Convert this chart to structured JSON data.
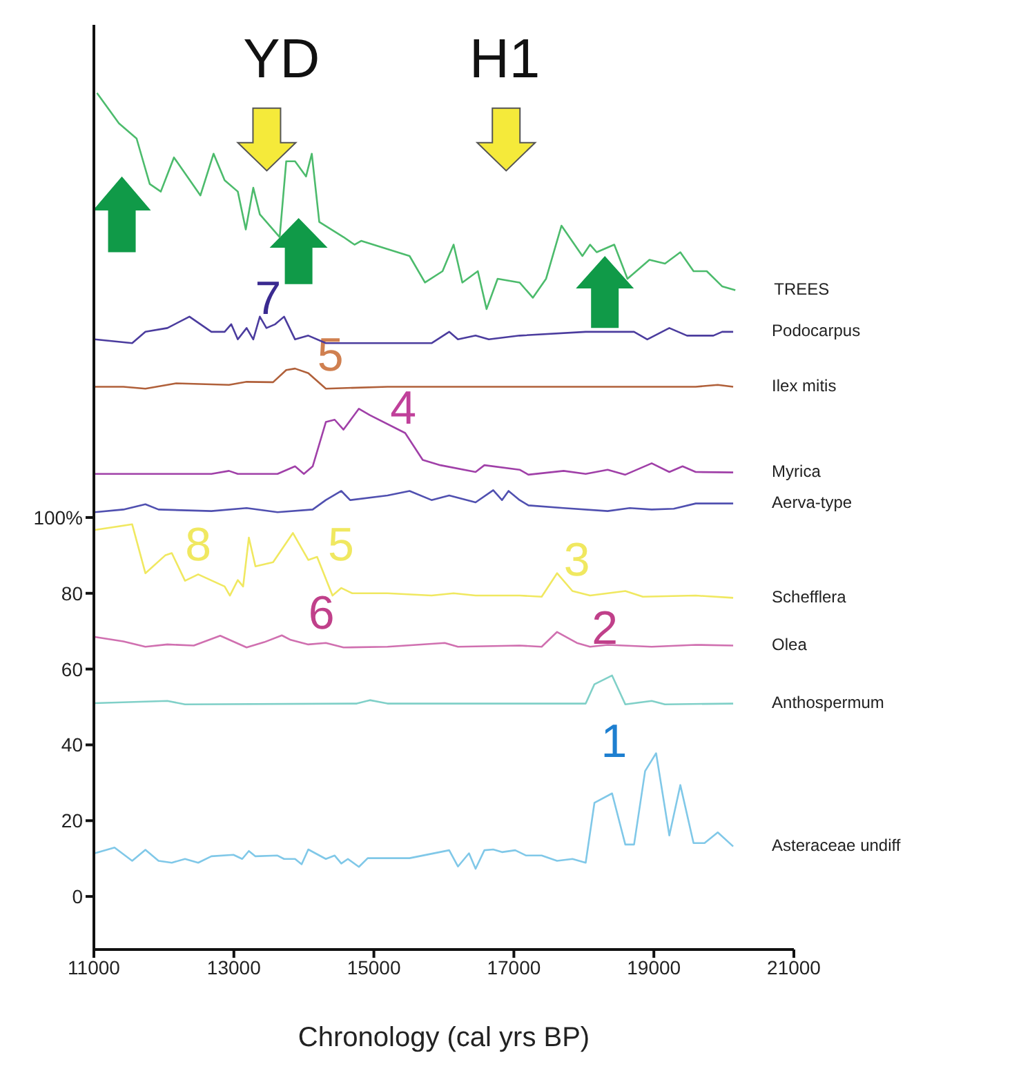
{
  "chart_data": {
    "type": "line",
    "xlabel": "Chronology (cal yrs BP)",
    "xlim": [
      11000,
      21000
    ],
    "xticks": [
      11000,
      13000,
      15000,
      17000,
      19000,
      21000
    ],
    "ylim": [
      -14,
      230
    ],
    "yticks": [
      0,
      20,
      40,
      60,
      {
        "value": 100,
        "label": "100%"
      },
      80
    ],
    "annotations": [
      "YD",
      "H1",
      "7",
      "5",
      "4",
      "8",
      "5",
      "3",
      "6",
      "2",
      "1"
    ],
    "series": [
      {
        "name": "TREES",
        "color": "#4cbb6c",
        "x": [
          11044,
          11358,
          11610,
          11798,
          11956,
          12144,
          12522,
          12710,
          12868,
          13056,
          13170,
          13277,
          13371,
          13654,
          13748,
          13874,
          14031,
          14113,
          14220,
          14566,
          14723,
          14818,
          15510,
          15730,
          15981,
          16139,
          16264,
          16485,
          16610,
          16768,
          17082,
          17271,
          17460,
          17680,
          17979,
          18089,
          18183,
          18434,
          18623,
          18937,
          19159,
          19378,
          19567,
          19756,
          19975,
          20164
        ],
        "values": [
          212,
          204,
          200,
          188,
          186,
          195,
          185,
          196,
          189,
          186,
          176,
          187,
          180,
          174,
          194,
          194,
          190,
          196,
          178,
          174,
          172,
          173,
          169,
          162,
          165,
          172,
          162,
          165,
          155,
          163,
          162,
          158,
          163,
          177,
          169,
          172,
          170,
          172,
          163,
          168,
          167,
          170,
          165,
          165,
          161,
          160
        ]
      },
      {
        "name": "Podocarpus",
        "color": "#4b3c9e",
        "x": [
          11012,
          11547,
          11736,
          12050,
          12365,
          12679,
          12868,
          12962,
          13056,
          13182,
          13277,
          13371,
          13465,
          13591,
          13717,
          13874,
          14063,
          14314,
          14880,
          15824,
          16076,
          16201,
          16453,
          16642,
          17082,
          18026,
          18340,
          18717,
          18906,
          19221,
          19473,
          19850,
          19975,
          20133
        ],
        "values": [
          147,
          146,
          149,
          150,
          153,
          149,
          149,
          151,
          147,
          150,
          147,
          153,
          150,
          151,
          153,
          147,
          148,
          146,
          146,
          146,
          149,
          147,
          148,
          147,
          148,
          149,
          149,
          149,
          147,
          150,
          148,
          148,
          149,
          149
        ]
      },
      {
        "name": "Ilex mitis",
        "color": "#b0603a",
        "x": [
          11012,
          11421,
          11736,
          12176,
          12930,
          13182,
          13560,
          13748,
          13874,
          14063,
          14314,
          15195,
          16453,
          19598,
          19913,
          20133
        ],
        "values": [
          134.5,
          134.5,
          134,
          135.4,
          135,
          135.8,
          135.7,
          138.9,
          139.3,
          138.1,
          134,
          134.5,
          134.5,
          134.5,
          135,
          134.5
        ]
      },
      {
        "name": "Myrica",
        "color": "#a040a8",
        "x": [
          11012,
          12679,
          12930,
          13056,
          13623,
          13874,
          14000,
          14126,
          14314,
          14440,
          14566,
          14786,
          14943,
          15447,
          15698,
          15950,
          16453,
          16579,
          17082,
          17208,
          17711,
          18026,
          18340,
          18592,
          18969,
          19221,
          19410,
          19598,
          20133
        ],
        "values": [
          111.5,
          111.5,
          112.3,
          111.5,
          111.5,
          113.5,
          111.5,
          113.5,
          125.2,
          125.8,
          123.2,
          128.7,
          127,
          122.3,
          115.2,
          113.8,
          112,
          113.8,
          112.6,
          111.3,
          112.3,
          111.5,
          112.6,
          111.3,
          114.3,
          112,
          113.5,
          112,
          111.9
        ]
      },
      {
        "name": "Aerva-type",
        "color": "#5050b0",
        "x": [
          11012,
          11421,
          11736,
          11924,
          12679,
          13182,
          13623,
          14126,
          14314,
          14535,
          14660,
          15195,
          15510,
          15824,
          16076,
          16453,
          16705,
          16830,
          16924,
          17082,
          17208,
          17711,
          18340,
          18655,
          18969,
          19284,
          19598,
          20133
        ],
        "values": [
          101.4,
          102.1,
          103.5,
          102.1,
          101.7,
          102.5,
          101.4,
          102.1,
          104.6,
          107,
          104.6,
          105.8,
          107,
          104.6,
          105.8,
          104,
          107.2,
          104.6,
          107,
          104.6,
          103.2,
          102.5,
          101.7,
          102.5,
          102.1,
          102.3,
          103.7,
          103.7
        ]
      },
      {
        "name": "Schefflera",
        "color": "#f0e860",
        "x": [
          11012,
          11547,
          11736,
          12019,
          12113,
          12302,
          12490,
          12868,
          12943,
          13056,
          13132,
          13214,
          13308,
          13560,
          13843,
          14063,
          14189,
          14409,
          14535,
          14692,
          15195,
          15824,
          16139,
          16453,
          17082,
          17397,
          17617,
          17837,
          18089,
          18592,
          18843,
          19598,
          20133
        ],
        "values": [
          96.7,
          98.2,
          85.3,
          90,
          90.6,
          83.3,
          85,
          81.8,
          79.4,
          83.5,
          81.8,
          94.7,
          87.1,
          88.2,
          95.9,
          88.8,
          89.6,
          79.4,
          81.4,
          80,
          80,
          79.4,
          80,
          79.4,
          79.4,
          79.1,
          85.3,
          80.6,
          79.4,
          80.6,
          79.1,
          79.4,
          78.8
        ]
      },
      {
        "name": "Olea",
        "color": "#d070b0",
        "x": [
          11012,
          11421,
          11736,
          12050,
          12427,
          12805,
          13182,
          13434,
          13685,
          13811,
          14063,
          14314,
          14566,
          15195,
          16013,
          16201,
          17082,
          17397,
          17617,
          17900,
          18089,
          18340,
          18969,
          19598,
          20133
        ],
        "values": [
          68.5,
          67.3,
          65.9,
          66.5,
          66.2,
          68.8,
          65.7,
          67.1,
          68.9,
          67.7,
          66.5,
          66.9,
          65.7,
          65.9,
          66.9,
          65.9,
          66.2,
          65.9,
          69.8,
          66.9,
          65.9,
          66.4,
          65.9,
          66.4,
          66.2
        ]
      },
      {
        "name": "Anthospermum",
        "color": "#80d0c8",
        "x": [
          11012,
          12050,
          12302,
          14755,
          14943,
          15195,
          18026,
          18151,
          18403,
          18592,
          18969,
          19158,
          20133
        ],
        "values": [
          51,
          51.6,
          50.7,
          50.9,
          51.8,
          50.9,
          50.9,
          56,
          58.3,
          50.7,
          51.6,
          50.7,
          50.9
        ]
      },
      {
        "name": "Asteraceae undiff",
        "color": "#80c8e8",
        "x": [
          11012,
          11295,
          11547,
          11736,
          11924,
          12113,
          12302,
          12490,
          12679,
          12994,
          13119,
          13214,
          13308,
          13623,
          13717,
          13874,
          13968,
          14063,
          14314,
          14440,
          14535,
          14629,
          14786,
          14912,
          15510,
          16076,
          16201,
          16359,
          16453,
          16579,
          16705,
          16830,
          17019,
          17176,
          17397,
          17617,
          17837,
          18026,
          18151,
          18403,
          18592,
          18717,
          18875,
          19032,
          19221,
          19378,
          19567,
          19724,
          19913,
          20133
        ],
        "values": [
          11.4,
          12.9,
          9.4,
          12.3,
          9.4,
          8.9,
          9.9,
          8.9,
          10.6,
          11,
          9.9,
          12,
          10.6,
          10.8,
          9.9,
          9.9,
          8.5,
          12.4,
          9.9,
          10.8,
          8.7,
          9.9,
          7.8,
          10.1,
          10.1,
          12.2,
          7.9,
          11.4,
          7.3,
          12.2,
          12.4,
          11.7,
          12.2,
          10.8,
          10.8,
          9.4,
          9.9,
          8.9,
          24.7,
          27.2,
          13.7,
          13.7,
          33.1,
          37.8,
          16.1,
          29.4,
          14.1,
          14.1,
          16.9,
          13.2
        ]
      }
    ]
  }
}
